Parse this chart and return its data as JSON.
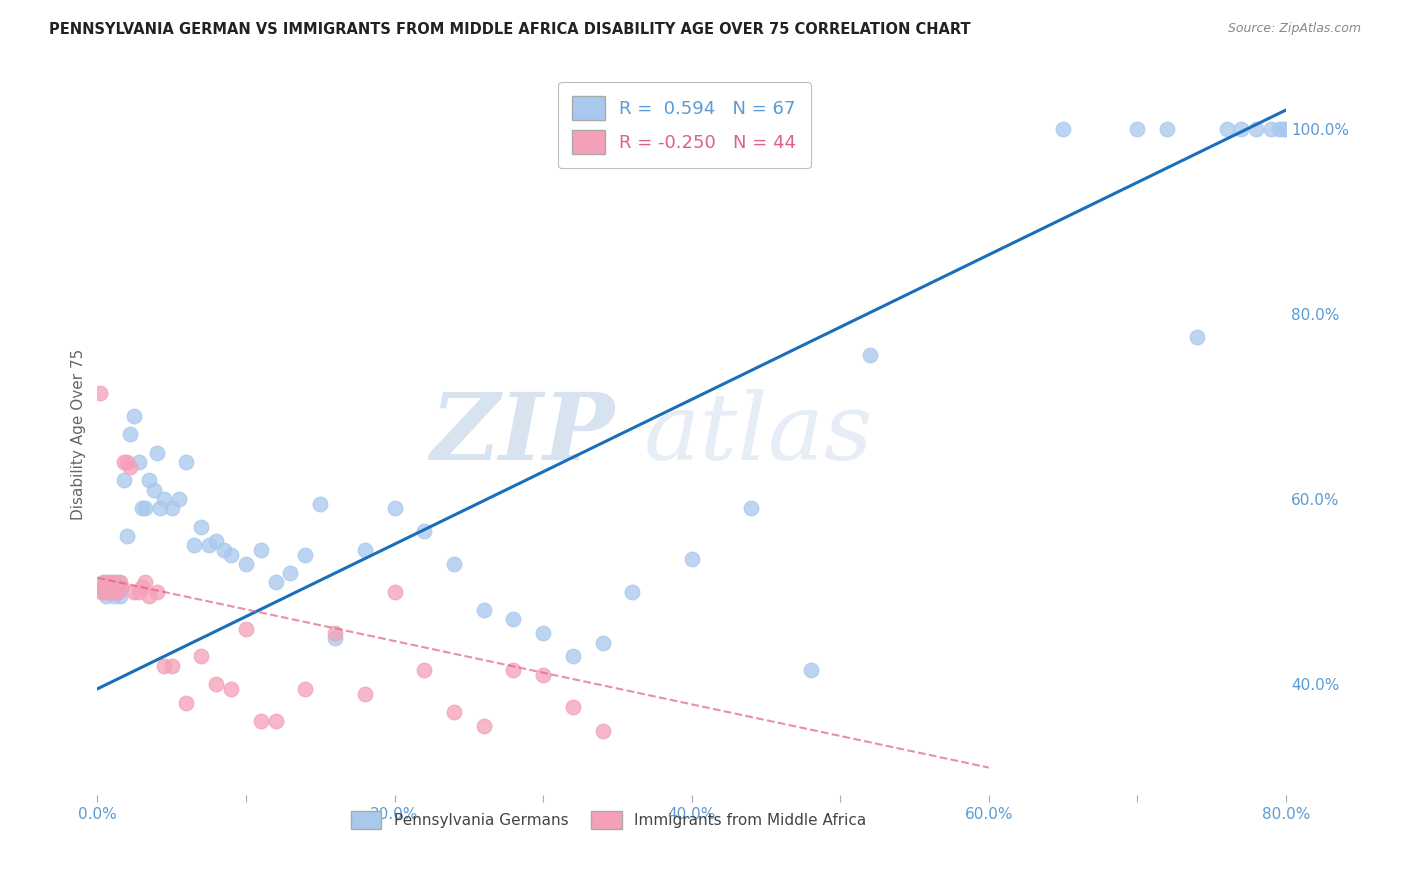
{
  "title": "PENNSYLVANIA GERMAN VS IMMIGRANTS FROM MIDDLE AFRICA DISABILITY AGE OVER 75 CORRELATION CHART",
  "source": "Source: ZipAtlas.com",
  "ylabel": "Disability Age Over 75",
  "xlim": [
    0.0,
    0.8
  ],
  "ylim": [
    0.28,
    1.06
  ],
  "xticks": [
    0.0,
    0.1,
    0.2,
    0.3,
    0.4,
    0.5,
    0.6,
    0.7,
    0.8
  ],
  "xticklabels": [
    "0.0%",
    "",
    "20.0%",
    "",
    "40.0%",
    "",
    "60.0%",
    "",
    "80.0%"
  ],
  "yticks_right": [
    0.4,
    0.6,
    0.8,
    1.0
  ],
  "yticklabels_right": [
    "40.0%",
    "60.0%",
    "80.0%",
    "100.0%"
  ],
  "blue_color": "#a8c8ee",
  "pink_color": "#f4a0b8",
  "blue_line_color": "#1a6fba",
  "pink_line_color": "#e06080",
  "watermark_zip": "ZIP",
  "watermark_atlas": "atlas",
  "legend_r1": "R =  0.594",
  "legend_n1": "N = 67",
  "legend_r2": "R = -0.250",
  "legend_n2": "N = 44",
  "legend_label1": "Pennsylvania Germans",
  "legend_label2": "Immigrants from Middle Africa",
  "blue_line_x0": 0.0,
  "blue_line_y0": 0.395,
  "blue_line_x1": 0.8,
  "blue_line_y1": 1.02,
  "pink_line_x0": 0.0,
  "pink_line_y0": 0.515,
  "pink_line_x1": 0.6,
  "pink_line_y1": 0.31,
  "blue_x": [
    0.003,
    0.004,
    0.005,
    0.006,
    0.007,
    0.008,
    0.009,
    0.01,
    0.011,
    0.012,
    0.013,
    0.014,
    0.015,
    0.016,
    0.018,
    0.02,
    0.022,
    0.025,
    0.028,
    0.03,
    0.032,
    0.035,
    0.038,
    0.04,
    0.042,
    0.045,
    0.05,
    0.055,
    0.06,
    0.065,
    0.07,
    0.075,
    0.08,
    0.085,
    0.09,
    0.1,
    0.11,
    0.12,
    0.13,
    0.14,
    0.15,
    0.16,
    0.18,
    0.2,
    0.22,
    0.24,
    0.26,
    0.28,
    0.3,
    0.32,
    0.34,
    0.36,
    0.4,
    0.44,
    0.48,
    0.52,
    0.65,
    0.7,
    0.72,
    0.74,
    0.76,
    0.77,
    0.78,
    0.79,
    0.795,
    0.798,
    0.8
  ],
  "blue_y": [
    0.5,
    0.51,
    0.505,
    0.495,
    0.5,
    0.505,
    0.51,
    0.5,
    0.495,
    0.505,
    0.5,
    0.51,
    0.495,
    0.505,
    0.62,
    0.56,
    0.67,
    0.69,
    0.64,
    0.59,
    0.59,
    0.62,
    0.61,
    0.65,
    0.59,
    0.6,
    0.59,
    0.6,
    0.64,
    0.55,
    0.57,
    0.55,
    0.555,
    0.545,
    0.54,
    0.53,
    0.545,
    0.51,
    0.52,
    0.54,
    0.595,
    0.45,
    0.545,
    0.59,
    0.565,
    0.53,
    0.48,
    0.47,
    0.455,
    0.43,
    0.445,
    0.5,
    0.535,
    0.59,
    0.415,
    0.755,
    1.0,
    1.0,
    1.0,
    0.775,
    1.0,
    1.0,
    1.0,
    1.0,
    1.0,
    1.0,
    1.0
  ],
  "pink_x": [
    0.002,
    0.003,
    0.004,
    0.005,
    0.006,
    0.007,
    0.008,
    0.009,
    0.01,
    0.011,
    0.012,
    0.013,
    0.014,
    0.015,
    0.016,
    0.018,
    0.02,
    0.022,
    0.025,
    0.028,
    0.03,
    0.032,
    0.035,
    0.04,
    0.045,
    0.05,
    0.06,
    0.07,
    0.08,
    0.09,
    0.1,
    0.11,
    0.12,
    0.14,
    0.16,
    0.18,
    0.2,
    0.22,
    0.24,
    0.26,
    0.28,
    0.3,
    0.32,
    0.34
  ],
  "pink_y": [
    0.715,
    0.5,
    0.505,
    0.51,
    0.5,
    0.505,
    0.51,
    0.5,
    0.505,
    0.51,
    0.5,
    0.505,
    0.5,
    0.51,
    0.505,
    0.64,
    0.64,
    0.635,
    0.5,
    0.5,
    0.505,
    0.51,
    0.495,
    0.5,
    0.42,
    0.42,
    0.38,
    0.43,
    0.4,
    0.395,
    0.46,
    0.36,
    0.36,
    0.395,
    0.455,
    0.39,
    0.5,
    0.415,
    0.37,
    0.355,
    0.415,
    0.41,
    0.375,
    0.35
  ]
}
